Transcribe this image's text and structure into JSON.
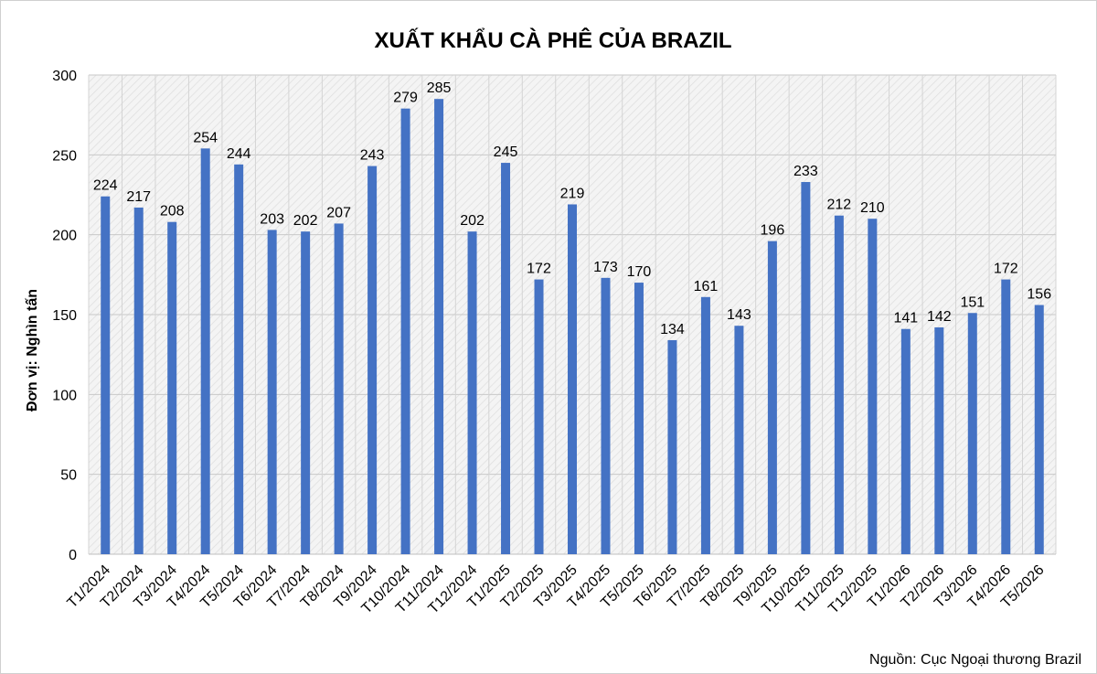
{
  "chart_data": {
    "type": "bar",
    "title": "XUẤT KHẨU CÀ PHÊ CỦA BRAZIL",
    "ylabel": "Đơn vị: Nghìn tấn",
    "xlabel": "",
    "source": "Nguồn: Cục Ngoại thương Brazil",
    "ylim": [
      0,
      300
    ],
    "yticks": [
      0,
      50,
      100,
      150,
      200,
      250,
      300
    ],
    "grid": true,
    "categories": [
      "T1/2024",
      "T2/2024",
      "T3/2024",
      "T4/2024",
      "T5/2024",
      "T6/2024",
      "T7/2024",
      "T8/2024",
      "T9/2024",
      "T10/2024",
      "T11/2024",
      "T12/2024",
      "T1/2025",
      "T2/2025",
      "T3/2025",
      "T4/2025",
      "T5/2025",
      "T6/2025",
      "T7/2025",
      "T8/2025",
      "T9/2025",
      "T10/2025",
      "T11/2025",
      "T12/2025",
      "T1/2026",
      "T2/2026",
      "T3/2026",
      "T4/2026",
      "T5/2026"
    ],
    "values": [
      224,
      217,
      208,
      254,
      244,
      203,
      202,
      207,
      243,
      279,
      285,
      202,
      245,
      172,
      219,
      173,
      170,
      134,
      161,
      143,
      196,
      233,
      212,
      210,
      141,
      142,
      151,
      172,
      156
    ],
    "bar_color": "#4472C4"
  }
}
